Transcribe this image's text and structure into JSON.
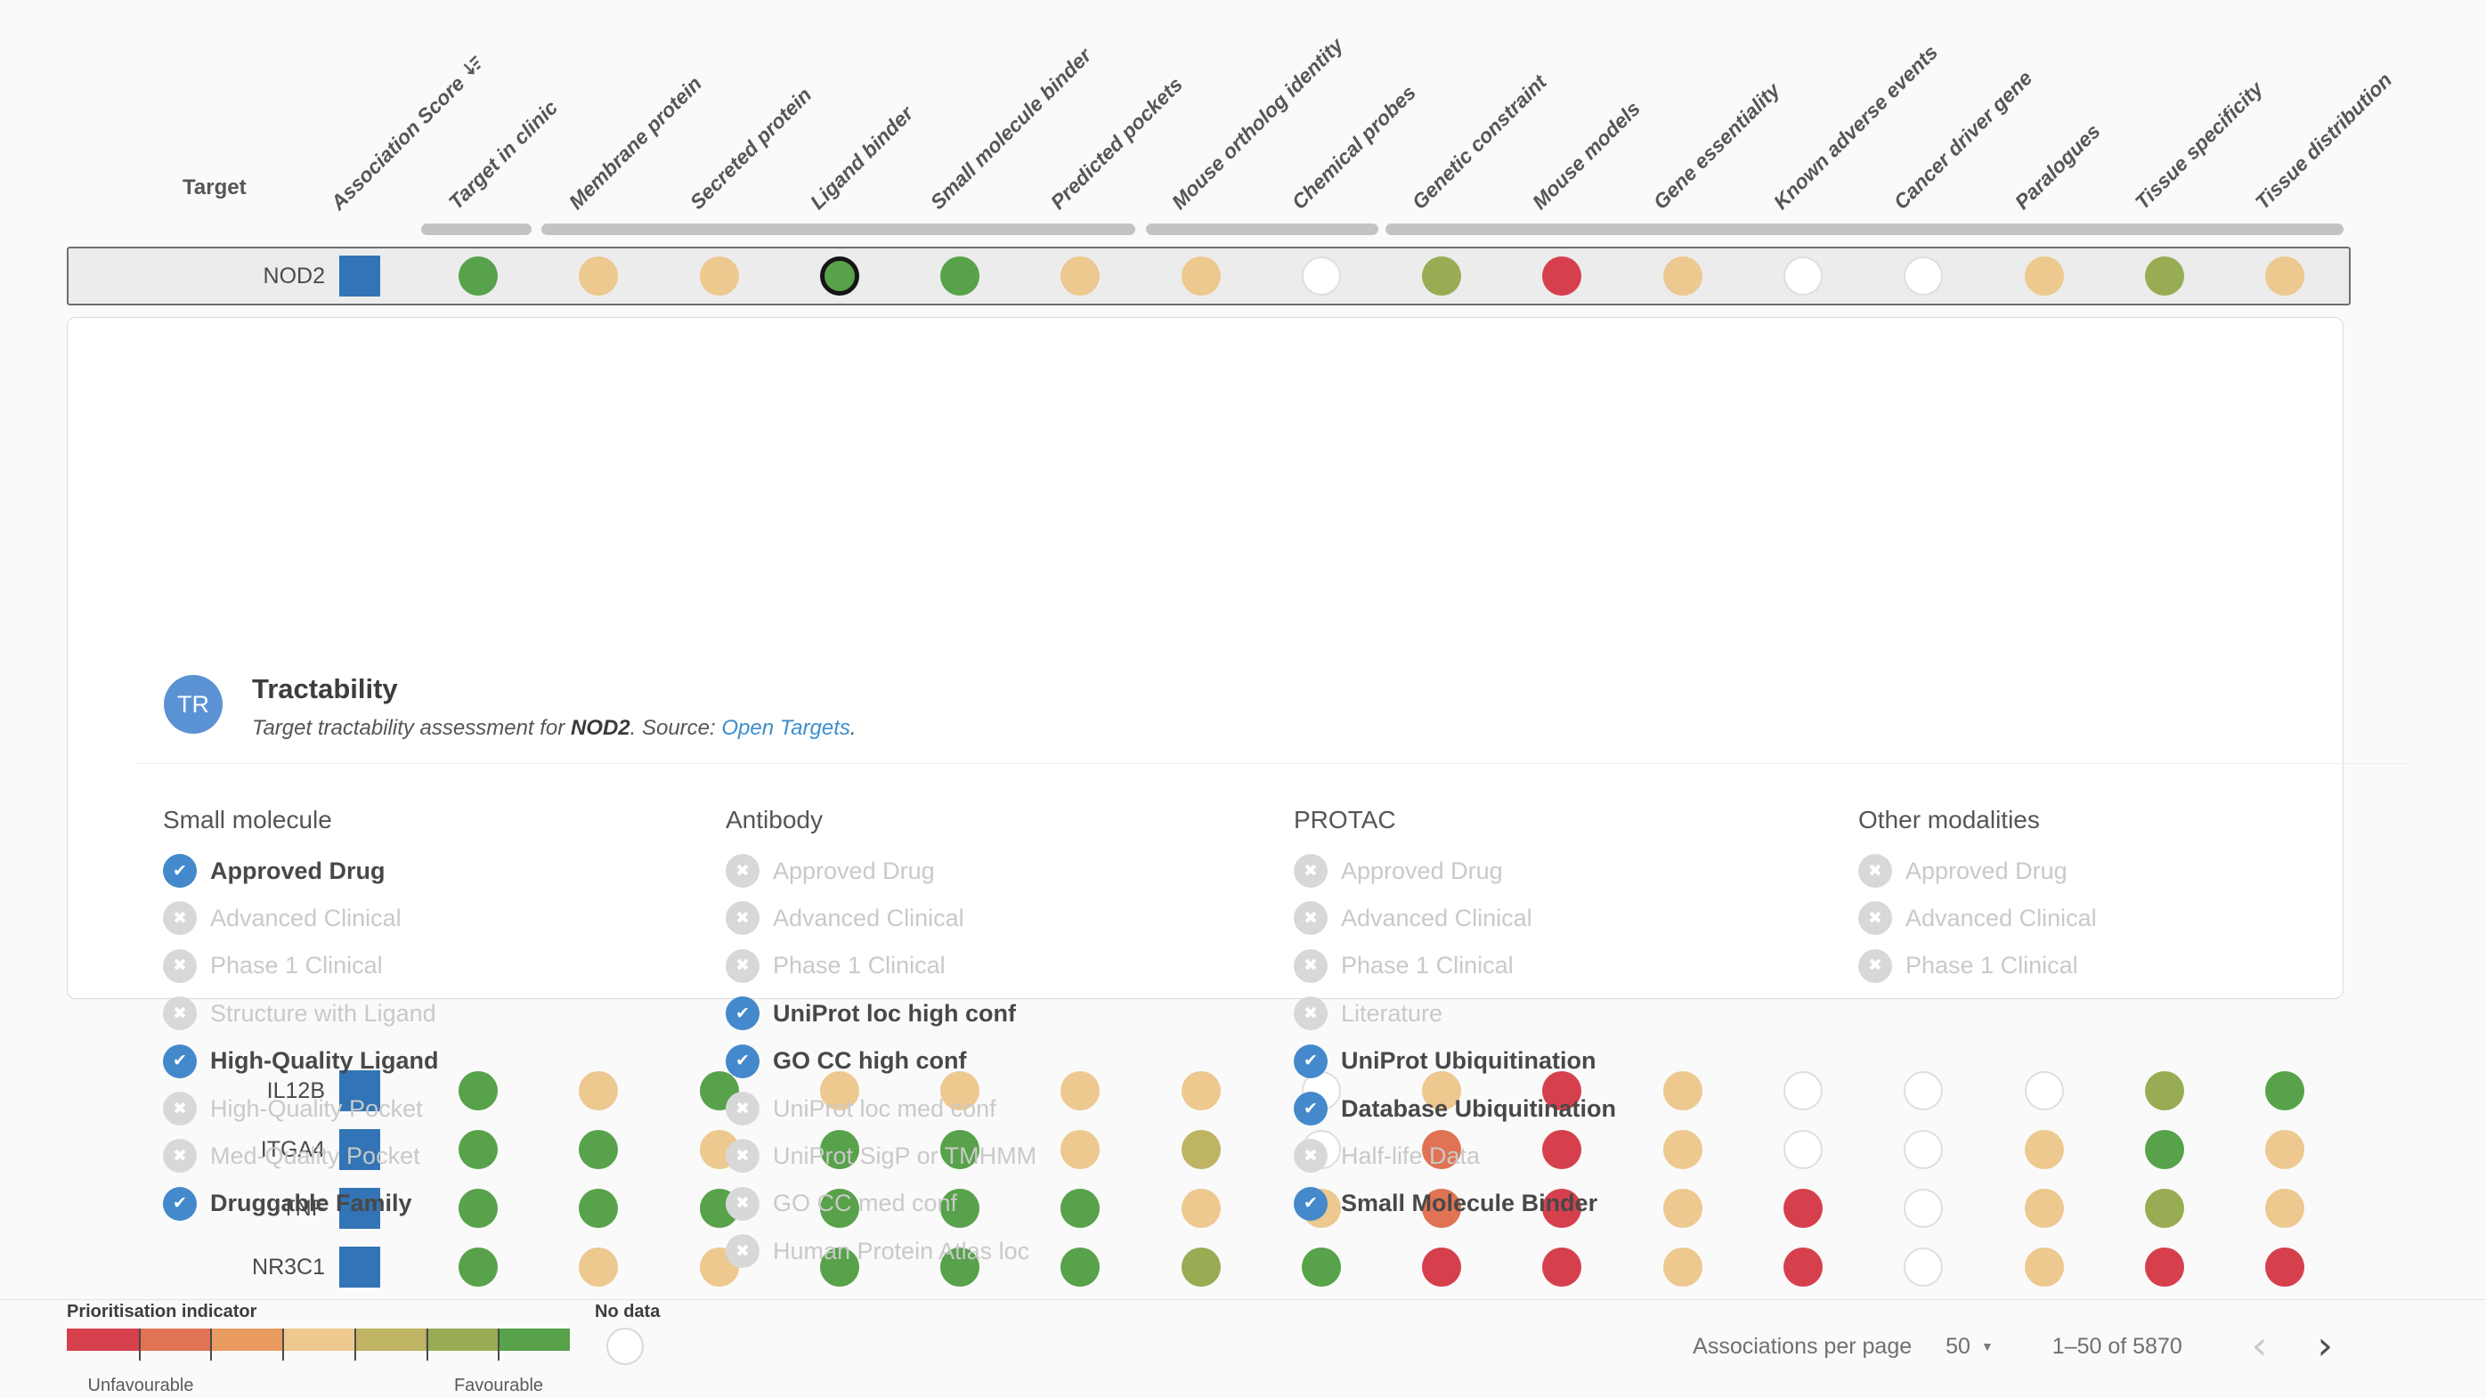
{
  "page": {
    "target_column_label": "Target"
  },
  "palette": {
    "red": "#D6404D",
    "orange_red": "#DF7353",
    "orange": "#E89A5F",
    "tan": "#EDC88F",
    "olive": "#BFB464",
    "yellow_green": "#98AC54",
    "green": "#57A24A",
    "no_data_fill": "#FFFFFF",
    "no_data_border": "#DEDEDE",
    "score_blue": "#3274B5",
    "check_blue": "#4389CC",
    "cross_gray": "#D8D8D8",
    "avatar_blue": "#5B92D4",
    "link_blue": "#3E8ECB"
  },
  "table": {
    "columns": [
      {
        "label": "Association Score",
        "sortable": true,
        "sort_icon": "sort-descending-icon"
      },
      {
        "label": "Target in clinic"
      },
      {
        "label": "Membrane protein"
      },
      {
        "label": "Secreted protein"
      },
      {
        "label": "Ligand binder"
      },
      {
        "label": "Small molecule binder"
      },
      {
        "label": "Predicted pockets"
      },
      {
        "label": "Mouse ortholog identity"
      },
      {
        "label": "Chemical probes"
      },
      {
        "label": "Genetic constraint"
      },
      {
        "label": "Mouse models"
      },
      {
        "label": "Gene essentiality"
      },
      {
        "label": "Known adverse events"
      },
      {
        "label": "Cancer driver gene"
      },
      {
        "label": "Paralogues"
      },
      {
        "label": "Tissue specificity"
      },
      {
        "label": "Tissue distribution"
      }
    ],
    "rows": [
      {
        "target": "NOD2",
        "selected": true,
        "selected_column": "Ligand binder",
        "cells": [
          "green",
          "tan",
          "tan",
          "green",
          "green",
          "tan",
          "tan",
          "no_data",
          "yellow_green",
          "red",
          "tan",
          "no_data",
          "no_data",
          "tan",
          "yellow_green",
          "tan"
        ]
      },
      {
        "target": "IL12B",
        "cells": [
          "green",
          "tan",
          "green",
          "tan",
          "tan",
          "tan",
          "tan",
          "no_data",
          "tan",
          "red",
          "tan",
          "no_data",
          "no_data",
          "no_data",
          "yellow_green",
          "green"
        ]
      },
      {
        "target": "ITGA4",
        "cells": [
          "green",
          "green",
          "tan",
          "green",
          "green",
          "tan",
          "olive",
          "no_data",
          "orange_red",
          "red",
          "tan",
          "no_data",
          "no_data",
          "tan",
          "green",
          "tan"
        ]
      },
      {
        "target": "TNF",
        "cells": [
          "green",
          "green",
          "green",
          "green",
          "green",
          "green",
          "tan",
          "tan",
          "orange_red",
          "red",
          "tan",
          "red",
          "no_data",
          "tan",
          "yellow_green",
          "tan"
        ]
      },
      {
        "target": "NR3C1",
        "cells": [
          "green",
          "tan",
          "tan",
          "green",
          "green",
          "green",
          "yellow_green",
          "green",
          "red",
          "red",
          "tan",
          "red",
          "no_data",
          "tan",
          "red",
          "red"
        ]
      }
    ]
  },
  "tractability": {
    "header": {
      "abbrev": "TR",
      "title": "Tractability",
      "desc_prefix": "Target tractability assessment for ",
      "desc_target": "NOD2",
      "desc_mid": ". Source: ",
      "desc_link": "Open Targets",
      "desc_suffix": "."
    },
    "sections": [
      {
        "title": "Small molecule",
        "items": [
          {
            "label": "Approved Drug",
            "checked": true
          },
          {
            "label": "Advanced Clinical",
            "checked": false
          },
          {
            "label": "Phase 1 Clinical",
            "checked": false
          },
          {
            "label": "Structure with Ligand",
            "checked": false
          },
          {
            "label": "High-Quality Ligand",
            "checked": true
          },
          {
            "label": "High-Quality Pocket",
            "checked": false
          },
          {
            "label": "Med-Quality Pocket",
            "checked": false
          },
          {
            "label": "Druggable Family",
            "checked": true
          }
        ]
      },
      {
        "title": "Antibody",
        "items": [
          {
            "label": "Approved Drug",
            "checked": false
          },
          {
            "label": "Advanced Clinical",
            "checked": false
          },
          {
            "label": "Phase 1 Clinical",
            "checked": false
          },
          {
            "label": "UniProt loc high conf",
            "checked": true
          },
          {
            "label": "GO CC high conf",
            "checked": true
          },
          {
            "label": "UniProt loc med conf",
            "checked": false
          },
          {
            "label": "UniProt SigP or TMHMM",
            "checked": false
          },
          {
            "label": "GO CC med conf",
            "checked": false
          },
          {
            "label": "Human Protein Atlas loc",
            "checked": false
          }
        ]
      },
      {
        "title": "PROTAC",
        "items": [
          {
            "label": "Approved Drug",
            "checked": false
          },
          {
            "label": "Advanced Clinical",
            "checked": false
          },
          {
            "label": "Phase 1 Clinical",
            "checked": false
          },
          {
            "label": "Literature",
            "checked": false
          },
          {
            "label": "UniProt Ubiquitination",
            "checked": true
          },
          {
            "label": "Database Ubiquitination",
            "checked": true
          },
          {
            "label": "Half-life Data",
            "checked": false
          },
          {
            "label": "Small Molecule Binder",
            "checked": true
          }
        ]
      },
      {
        "title": "Other modalities",
        "items": [
          {
            "label": "Approved Drug",
            "checked": false
          },
          {
            "label": "Advanced Clinical",
            "checked": false
          },
          {
            "label": "Phase 1 Clinical",
            "checked": false
          }
        ]
      }
    ]
  },
  "legend": {
    "title": "Prioritisation indicator",
    "segments": [
      "red",
      "orange_red",
      "orange",
      "tan",
      "olive",
      "yellow_green",
      "green"
    ],
    "unfavourable_label": "Unfavourable",
    "favourable_label": "Favourable",
    "no_data_label": "No data"
  },
  "pagination": {
    "label": "Associations per page",
    "per_page": "50",
    "range": "1–50 of 5870"
  }
}
